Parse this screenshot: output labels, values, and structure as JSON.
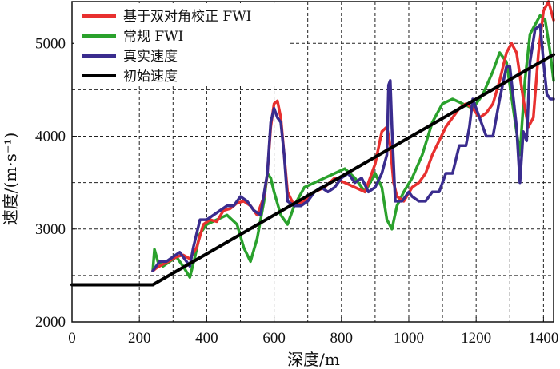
{
  "chart_data": {
    "type": "line",
    "title": "",
    "xlabel": "深度/m",
    "ylabel": "速度/(m·s⁻¹)",
    "xlim": [
      0,
      1430
    ],
    "ylim": [
      2000,
      5450
    ],
    "xticks": [
      0,
      200,
      400,
      600,
      800,
      1000,
      1200,
      1400
    ],
    "xtick_labels": [
      "0",
      "200",
      "400",
      "600",
      "800",
      "1000",
      "1200",
      "1400"
    ],
    "yticks": [
      2000,
      3000,
      4000,
      5000
    ],
    "ytick_labels": [
      "2000",
      "3000",
      "4000",
      "5000"
    ],
    "grid": true,
    "legend_position": "top-left",
    "series": [
      {
        "name": "基于双对角校正 FWI",
        "color": "#e8302f",
        "x": [
          240,
          250,
          270,
          290,
          310,
          330,
          350,
          370,
          390,
          410,
          430,
          450,
          470,
          490,
          510,
          530,
          550,
          570,
          580,
          590,
          600,
          610,
          620,
          630,
          640,
          660,
          690,
          720,
          750,
          780,
          810,
          840,
          870,
          900,
          920,
          935,
          945,
          955,
          965,
          985,
          1010,
          1030,
          1050,
          1070,
          1090,
          1110,
          1130,
          1150,
          1170,
          1190,
          1210,
          1230,
          1250,
          1270,
          1290,
          1305,
          1320,
          1340,
          1355,
          1370,
          1385,
          1400,
          1415,
          1430
        ],
        "values": [
          2550,
          2580,
          2620,
          2660,
          2700,
          2720,
          2680,
          2800,
          3050,
          3100,
          3080,
          3200,
          3220,
          3280,
          3300,
          3250,
          3150,
          3350,
          3600,
          4100,
          4350,
          4380,
          4200,
          3800,
          3400,
          3250,
          3300,
          3400,
          3450,
          3550,
          3500,
          3450,
          3400,
          3700,
          4050,
          4100,
          3900,
          3500,
          3350,
          3300,
          3450,
          3500,
          3600,
          3800,
          3950,
          4100,
          4200,
          4300,
          4350,
          4300,
          4200,
          4250,
          4350,
          4600,
          4900,
          5000,
          4900,
          4400,
          4100,
          4200,
          4900,
          5350,
          5450,
          5250
        ]
      },
      {
        "name": "常规 FWI",
        "color": "#2aa12c",
        "x": [
          240,
          245,
          255,
          270,
          290,
          310,
          330,
          350,
          365,
          380,
          400,
          430,
          460,
          490,
          510,
          530,
          550,
          570,
          580,
          590,
          600,
          620,
          640,
          660,
          690,
          720,
          750,
          780,
          810,
          840,
          870,
          900,
          920,
          935,
          950,
          965,
          985,
          1010,
          1040,
          1070,
          1100,
          1130,
          1160,
          1190,
          1220,
          1250,
          1270,
          1290,
          1310,
          1330,
          1345,
          1360,
          1375,
          1390,
          1405,
          1420,
          1430
        ],
        "values": [
          2550,
          2780,
          2650,
          2600,
          2650,
          2700,
          2600,
          2480,
          2700,
          2950,
          3050,
          3100,
          3150,
          3050,
          2800,
          2650,
          2900,
          3300,
          3600,
          3550,
          3400,
          3150,
          3050,
          3250,
          3450,
          3500,
          3550,
          3600,
          3650,
          3550,
          3400,
          3600,
          3450,
          3100,
          3000,
          3250,
          3400,
          3550,
          3800,
          4150,
          4350,
          4400,
          4350,
          4300,
          4450,
          4700,
          4900,
          4800,
          4300,
          3800,
          4600,
          5100,
          5200,
          5300,
          5250,
          4900,
          4600
        ]
      },
      {
        "name": "真实速度",
        "color": "#3a2c8e",
        "x": [
          240,
          260,
          280,
          300,
          320,
          340,
          350,
          360,
          380,
          400,
          420,
          440,
          460,
          480,
          500,
          520,
          540,
          560,
          580,
          590,
          600,
          610,
          620,
          630,
          640,
          660,
          680,
          700,
          720,
          740,
          760,
          780,
          800,
          820,
          840,
          860,
          880,
          900,
          920,
          935,
          940,
          945,
          950,
          960,
          980,
          1000,
          1010,
          1030,
          1050,
          1070,
          1090,
          1110,
          1130,
          1150,
          1170,
          1180,
          1190,
          1200,
          1210,
          1230,
          1250,
          1270,
          1290,
          1300,
          1320,
          1330,
          1340,
          1350,
          1360,
          1375,
          1390,
          1400,
          1410,
          1420,
          1430
        ],
        "values": [
          2550,
          2650,
          2650,
          2700,
          2750,
          2650,
          2600,
          2800,
          3100,
          3100,
          3150,
          3200,
          3250,
          3250,
          3350,
          3300,
          3200,
          3150,
          3600,
          4150,
          4300,
          4200,
          4150,
          3800,
          3300,
          3250,
          3250,
          3300,
          3400,
          3450,
          3400,
          3450,
          3550,
          3600,
          3500,
          3550,
          3400,
          3450,
          3600,
          3800,
          4550,
          4600,
          4100,
          3300,
          3300,
          3400,
          3350,
          3300,
          3300,
          3400,
          3400,
          3600,
          3600,
          3900,
          3900,
          4100,
          4400,
          4300,
          4200,
          4000,
          4000,
          4400,
          4750,
          4750,
          4100,
          3500,
          4050,
          3950,
          4800,
          5150,
          5200,
          4800,
          4450,
          4400,
          4400
        ]
      },
      {
        "name": "初始速度",
        "color": "#000000",
        "x": [
          0,
          240,
          1430
        ],
        "values": [
          2400,
          2400,
          4880
        ]
      }
    ]
  }
}
